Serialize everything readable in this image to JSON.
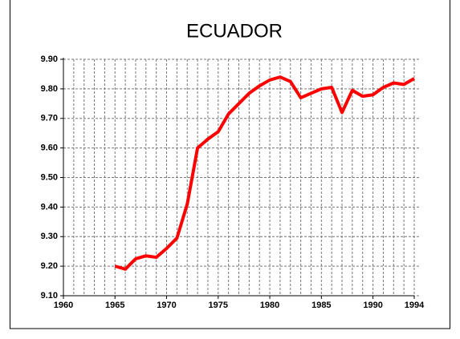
{
  "chart_data": {
    "type": "line",
    "title": "ECUADOR",
    "x": [
      1965,
      1966,
      1967,
      1968,
      1969,
      1970,
      1971,
      1972,
      1973,
      1974,
      1975,
      1976,
      1977,
      1978,
      1979,
      1980,
      1981,
      1982,
      1983,
      1984,
      1985,
      1986,
      1987,
      1988,
      1989,
      1990,
      1991,
      1992,
      1993,
      1994
    ],
    "series": [
      {
        "color": "#ff0000",
        "values": [
          9.2,
          9.19,
          9.225,
          9.235,
          9.23,
          9.26,
          9.295,
          9.41,
          9.6,
          9.63,
          9.655,
          9.715,
          9.75,
          9.785,
          9.81,
          9.83,
          9.84,
          9.825,
          9.77,
          9.785,
          9.8,
          9.805,
          9.72,
          9.795,
          9.775,
          9.78,
          9.805,
          9.82,
          9.815,
          9.835
        ]
      }
    ],
    "xlim": [
      1960,
      1994
    ],
    "xticks": [
      1960,
      1965,
      1970,
      1975,
      1980,
      1985,
      1990,
      1994
    ],
    "xminorticks": [
      1960,
      1961,
      1962,
      1963,
      1964,
      1965,
      1966,
      1967,
      1968,
      1969,
      1970,
      1971,
      1972,
      1973,
      1974,
      1975,
      1976,
      1977,
      1978,
      1979,
      1980,
      1981,
      1982,
      1983,
      1984,
      1985,
      1986,
      1987,
      1988,
      1989,
      1990,
      1991,
      1992,
      1993,
      1994
    ],
    "ylim": [
      9.1,
      9.9
    ],
    "yticks": [
      {
        "value": 9.1,
        "label": "9.10"
      },
      {
        "value": 9.2,
        "label": "9.20"
      },
      {
        "value": 9.3,
        "label": "9.30"
      },
      {
        "value": 9.4,
        "label": "9.40"
      },
      {
        "value": 9.5,
        "label": "9.50"
      },
      {
        "value": 9.6,
        "label": "9.60"
      },
      {
        "value": 9.7,
        "label": "9.70"
      },
      {
        "value": 9.8,
        "label": "9.80"
      },
      {
        "value": 9.9,
        "label": "9.90"
      }
    ],
    "grid": true
  }
}
